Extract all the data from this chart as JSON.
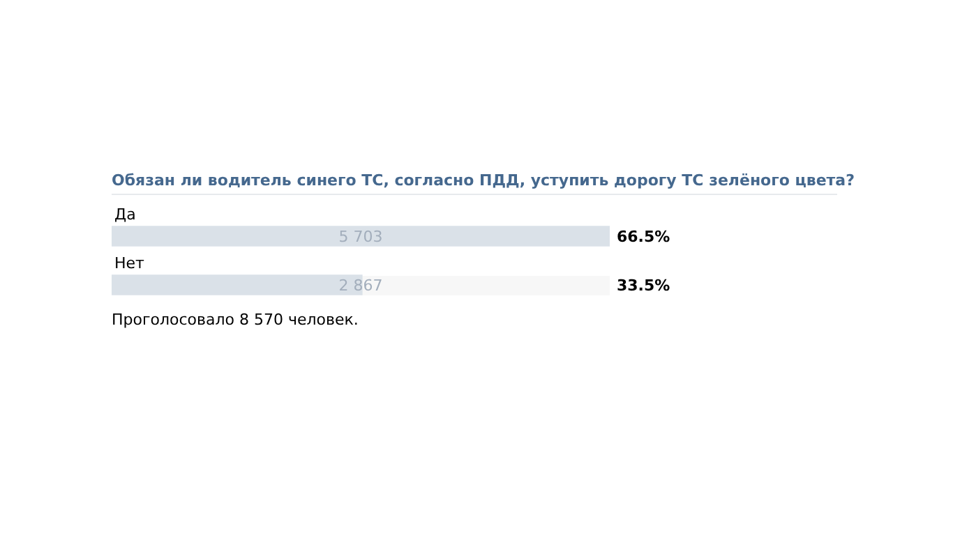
{
  "chart_data": {
    "type": "bar",
    "orientation": "horizontal",
    "title": "Обязан ли водитель синего ТС, согласно ПДД, уступить дорогу ТС зелёного цвета?",
    "categories": [
      "Да",
      "Нет"
    ],
    "values": [
      5703,
      2867
    ],
    "value_labels": [
      "5 703",
      "2 867"
    ],
    "color": "#dae1e8",
    "legend": false,
    "annotations": [
      "66.5%",
      "33.5%",
      "Проголосовало 8 570 человек."
    ]
  }
}
